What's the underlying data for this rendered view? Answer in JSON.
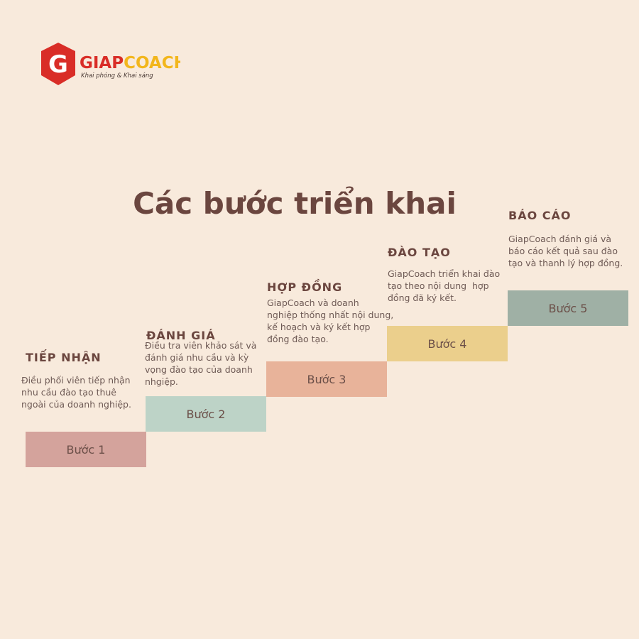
{
  "logo": {
    "letter": "G",
    "brand_first": "GIAP",
    "brand_second": "COACH",
    "tagline": "Khai phóng & Khai sáng"
  },
  "title": "Các bước triển khai",
  "steps": [
    {
      "heading": "TIẾP NHẬN",
      "description": [
        "Điều phối viên tiếp nhận",
        "nhu cầu đào tạo thuê",
        "ngoài của doanh nghiệp."
      ],
      "label": "Bước 1"
    },
    {
      "heading": "ĐÁNH GIÁ",
      "description": [
        "Điều tra viên khảo sát và",
        "đánh giá nhu cầu và kỳ",
        "vọng đào tạo của doanh",
        "nhgiệp."
      ],
      "label": "Bước 2"
    },
    {
      "heading": "HỢP ĐỒNG",
      "description": [
        "GiapCoach và doanh",
        "nghiệp thống nhất nội dung,",
        "kế hoạch và ký kết hợp",
        "đồng đào tạo."
      ],
      "label": "Bước 3"
    },
    {
      "heading": "ĐÀO TẠO",
      "description": [
        "GiapCoach triển khai đào",
        "tạo theo nội dung  hợp",
        "đồng đã ký kết."
      ],
      "label": "Bước 4"
    },
    {
      "heading": "BÁO CÁO",
      "description": [
        "GiapCoach đánh giá và",
        "báo cáo kết quả sau đào",
        "tạo và thanh lý hợp đồng."
      ],
      "label": "Bước 5"
    }
  ]
}
